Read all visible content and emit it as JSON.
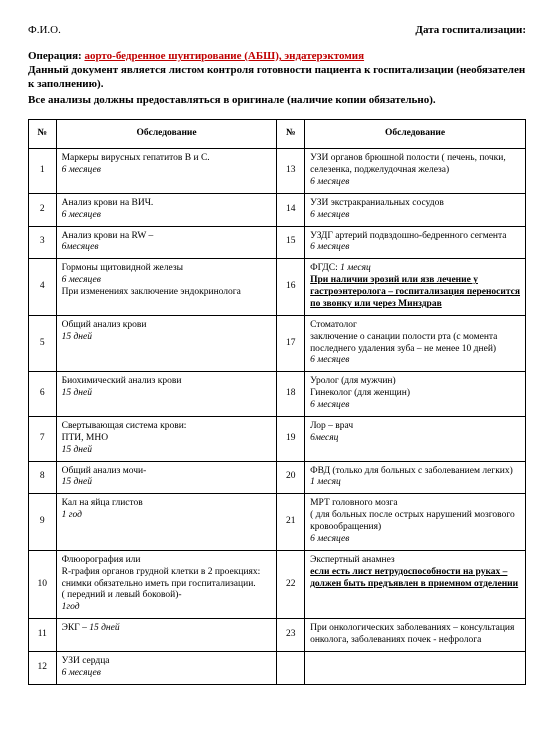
{
  "header": {
    "fio": "Ф.И.О.",
    "date_label": "Дата госпитализации:"
  },
  "operation": {
    "label": "Операция:",
    "value": "аорто-бедренное шунтирование (АБШ), эндатерэктомия"
  },
  "desc_lines": [
    "Данный документ является листом контроля готовности пациента к госпитализации (необязателен к заполнению).",
    "Все анализы должны предоставляться в оригинале (наличие копии обязательно)."
  ],
  "table": {
    "headers": {
      "num": "№",
      "exam": "Обследование"
    },
    "rows": [
      {
        "n1": "1",
        "c1": "Маркеры вирусных гепатитов В и С.<br><span class=\"italic\">6 месяцев</span>",
        "n2": "13",
        "c2": "УЗИ органов брюшной полости ( печень, почки, селезенка, поджелудочная железа)<br><span class=\"italic\">6 месяцев</span>"
      },
      {
        "n1": "2",
        "c1": "Анализ крови на ВИЧ.<br><span class=\"italic\">6 месяцев</span>",
        "n2": "14",
        "c2": "УЗИ экстракраниальных сосудов<br><span class=\"italic\">6 месяцев</span>"
      },
      {
        "n1": "3",
        "c1": "Анализ крови на RW –<br><span class=\"italic\">6месяцев</span>",
        "n2": "15",
        "c2": "УЗДГ артерий подвздошно-бедренного сегмента<br><span class=\"italic\">6 месяцев</span>"
      },
      {
        "n1": "4",
        "c1": "Гормоны щитовидной железы<br><span class=\"italic\">6 месяцев</span><br>При изменениях заключение эндокринолога",
        "n2": "16",
        "c2": "ФГДС: <span class=\"italic\">1 месяц</span><br><span class=\"bu\">При наличии эрозий или язв лечение у гастроэнтеролога – госпитализация переносится по звонку или через Минздрав</span>"
      },
      {
        "n1": "5",
        "c1": "Общий анализ крови<br><span class=\"italic\">15 дней</span>",
        "n2": "17",
        "c2": "Стоматолог<br>заключение о санации полости рта (с момента последнего удаления зуба – не менее 10 дней)<br><span class=\"italic\">6 месяцев</span>"
      },
      {
        "n1": "6",
        "c1": "Биохимический анализ крови<br><span class=\"italic\">15 дней</span>",
        "n2": "18",
        "c2": "Уролог (для мужчин)<br>Гинеколог (для женщин)<br><span class=\"italic\">6 месяцев</span>"
      },
      {
        "n1": "7",
        "c1": "Свертывающая система крови:<br>ПТИ, МНО<br><span class=\"italic\">15 дней</span>",
        "n2": "19",
        "c2": "Лор – врач<br><span class=\"italic\">6месяц</span>"
      },
      {
        "n1": "8",
        "c1": "Общий анализ мочи-<br><span class=\"italic\">15 дней</span>",
        "n2": "20",
        "c2": "ФВД (только для больных с заболеванием легких)<br><span class=\"italic\">1 месяц</span>"
      },
      {
        "n1": "9",
        "c1": "Кал на яйца глистов<br><span class=\"italic\">1 год</span>",
        "n2": "21",
        "c2": "МРТ головного мозга<br>( для больных после острых нарушений мозгового кровообращения)<br><span class=\"italic\">6 месяцев</span>"
      },
      {
        "n1": "10",
        "c1": "Флюорография или<br>R-графия органов грудной клетки в 2 проекциях: снимки обязательно иметь при госпитализации.<br>( передний и левый боковой)-<br><span class=\"italic\">1год</span>",
        "n2": "22",
        "c2": "Экспертный анамнез<br><span class=\"bu\">если есть лист нетрудоспособности на руках – должен быть предъявлен в приемном отделении</span>"
      },
      {
        "n1": "11",
        "c1": "ЭКГ – <span class=\"italic\">15 дней</span>",
        "n2": "23",
        "c2": "При онкологических заболеваниях – консультация онколога, заболеваниях почек - нефролога"
      },
      {
        "n1": "12",
        "c1": "УЗИ сердца<br><span class=\"italic\">6 месяцев</span>",
        "n2": "",
        "c2": ""
      }
    ]
  }
}
